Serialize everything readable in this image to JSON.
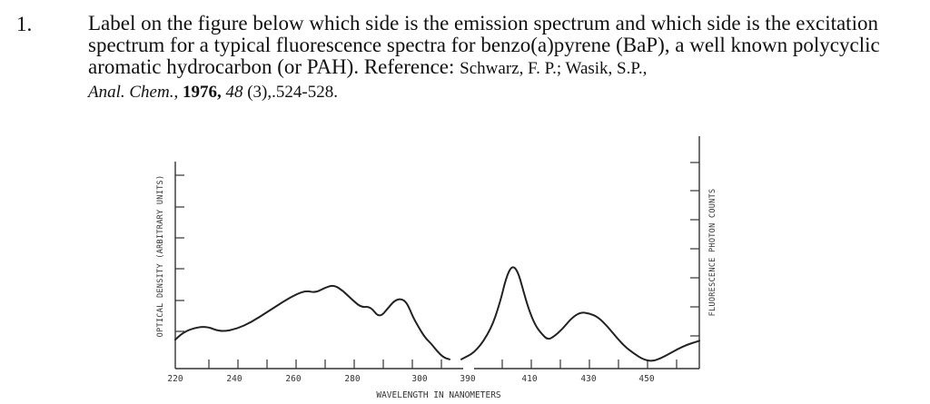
{
  "question": {
    "number": "1.",
    "text": "Label on the figure below which side is the emission spectrum and which side is the excitation spectrum for a  typical fluorescence spectra for benzo(a)pyrene (BaP), a well known polycyclic aromatic hydrocarbon (or PAH).  Reference: ",
    "ref_authors": "Schwarz, F. P.; Wasik, S.P.,",
    "journal": "Anal. Chem.",
    "year": "1976,",
    "volume": "48",
    "issue_pages": " (3),.524-528."
  },
  "chart_data": {
    "type": "line",
    "xlabel": "WAVELENGTH IN NANOMETERS",
    "ylabel_left": "OPTICAL DENSITY (ARBITRARY UNITS)",
    "ylabel_right": "FLUORESCENCE PHOTON COUNTS",
    "x_ticks": [
      "220",
      "240",
      "260",
      "280",
      "300",
      "390",
      "410",
      "430",
      "450"
    ],
    "series": [
      {
        "x": [
          220,
          222,
          225,
          230,
          235,
          240,
          245,
          250,
          255,
          260,
          263,
          266,
          269,
          272,
          275,
          278,
          281,
          284,
          287,
          290,
          292,
          294,
          296,
          298,
          300,
          302,
          304,
          306,
          308,
          310
        ],
        "y": [
          0.22,
          0.28,
          0.33,
          0.36,
          0.3,
          0.33,
          0.4,
          0.5,
          0.6,
          0.69,
          0.72,
          0.7,
          0.75,
          0.78,
          0.72,
          0.63,
          0.55,
          0.56,
          0.44,
          0.55,
          0.62,
          0.64,
          0.6,
          0.45,
          0.34,
          0.24,
          0.18,
          0.1,
          0.04,
          0.02
        ]
      },
      {
        "x": [
          385,
          390,
          395,
          398,
          400,
          402,
          404,
          406,
          408,
          410,
          412,
          414,
          416,
          419,
          422,
          425,
          428,
          431,
          434,
          437,
          440,
          443,
          446,
          449,
          452,
          455,
          458,
          461,
          464,
          465
        ],
        "y": [
          0.02,
          0.1,
          0.33,
          0.6,
          0.85,
          0.98,
          0.92,
          0.7,
          0.5,
          0.36,
          0.28,
          0.22,
          0.25,
          0.33,
          0.44,
          0.5,
          0.49,
          0.45,
          0.36,
          0.25,
          0.15,
          0.08,
          0.02,
          0.0,
          0.03,
          0.08,
          0.13,
          0.17,
          0.2,
          0.21
        ]
      }
    ]
  }
}
